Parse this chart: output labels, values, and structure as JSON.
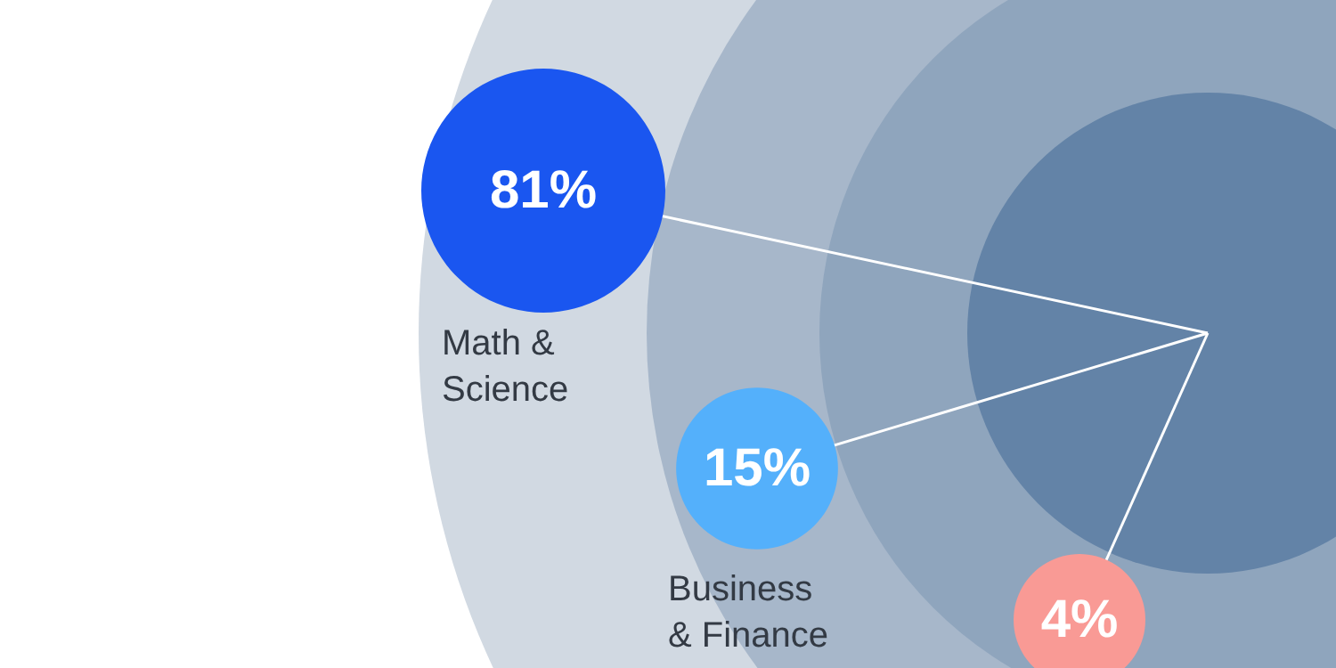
{
  "chart_data": {
    "type": "other",
    "categories": [
      "Math & Science",
      "Business & Finance",
      null
    ],
    "values": [
      81,
      15,
      4
    ],
    "value_labels": [
      "81%",
      "15%",
      "4%"
    ],
    "colors": [
      "#1a56f0",
      "#54b0fb",
      "#f99a95"
    ]
  }
}
